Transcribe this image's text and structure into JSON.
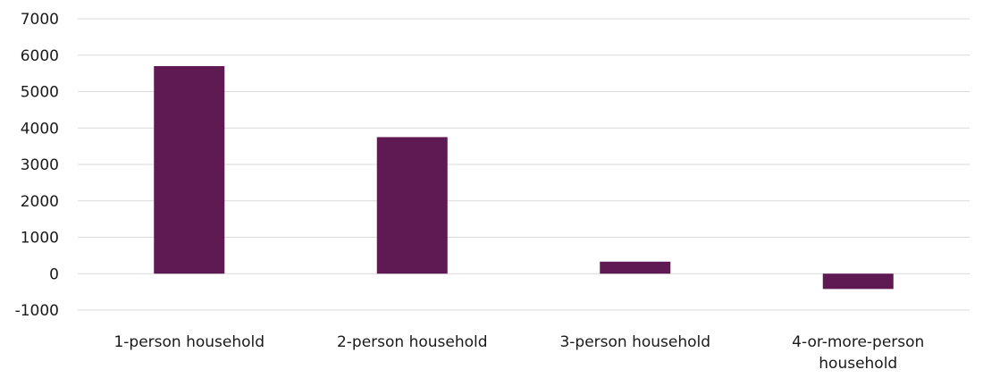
{
  "chart_data": {
    "type": "bar",
    "categories": [
      [
        "1-person household"
      ],
      [
        "2-person household"
      ],
      [
        "3-person household"
      ],
      [
        "4-or-more-person",
        "household"
      ]
    ],
    "values": [
      5700,
      3750,
      330,
      -420
    ],
    "ylim": [
      -1000,
      7000
    ],
    "yticks": [
      7000,
      6000,
      5000,
      4000,
      3000,
      2000,
      1000,
      0,
      -1000
    ],
    "grid": true,
    "bar_color": "#5f1a54",
    "grid_color": "#d9d9d9",
    "title": "",
    "xlabel": "",
    "ylabel": ""
  }
}
